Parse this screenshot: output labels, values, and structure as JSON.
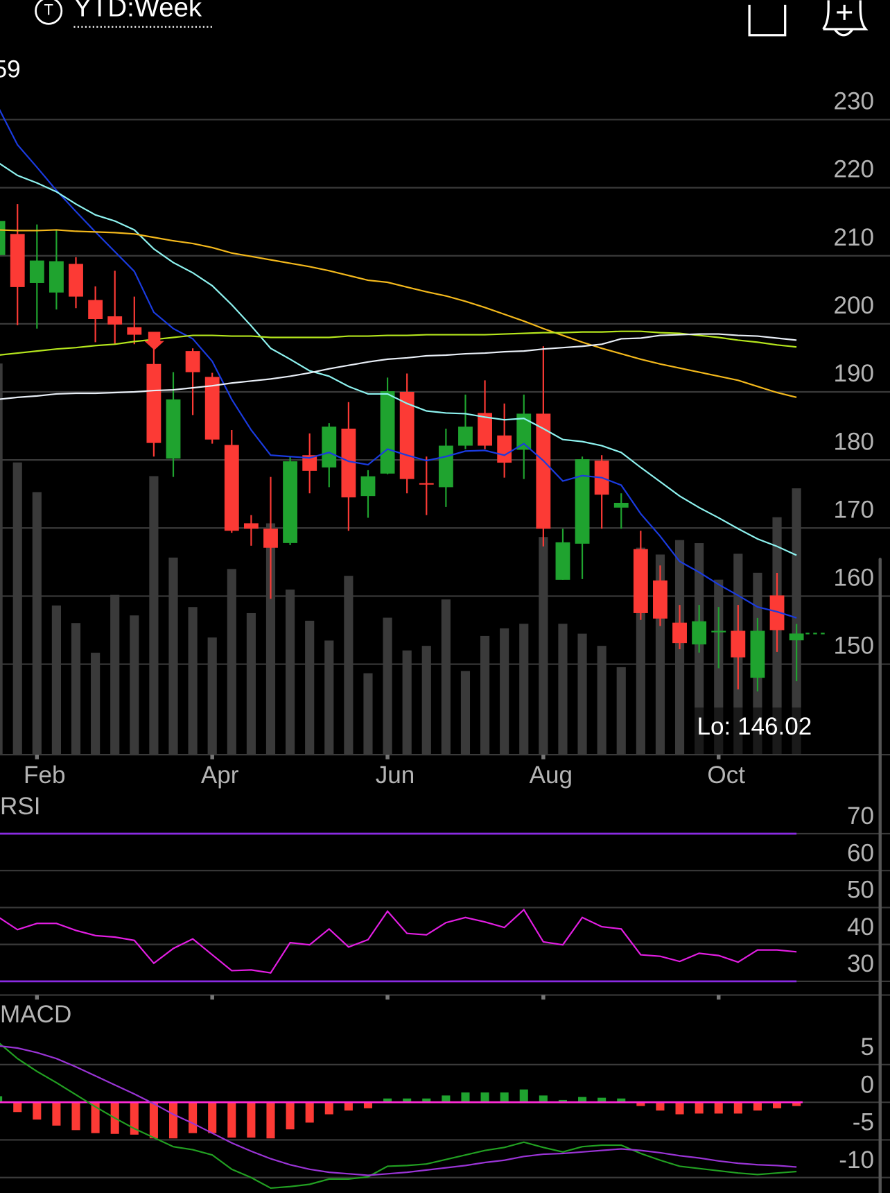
{
  "header": {
    "icon": "T",
    "title": "YTD:Week",
    "price_fragment": "59"
  },
  "chart_data": [
    {
      "type": "candlestick",
      "categories": [
        null,
        null,
        "Feb",
        null,
        null,
        null,
        null,
        null,
        null,
        null,
        null,
        "Apr",
        null,
        null,
        null,
        null,
        null,
        null,
        null,
        null,
        "Jun",
        null,
        null,
        null,
        null,
        null,
        null,
        null,
        "Aug",
        null,
        null,
        null,
        null,
        null,
        null,
        null,
        null,
        "Oct",
        null,
        null,
        null,
        null
      ],
      "open": [
        210.1,
        213.2,
        206.0,
        204.6,
        208.8,
        203.5,
        201.1,
        199.5,
        194.1,
        180.2,
        196.0,
        192.2,
        182.2,
        170.7,
        169.9,
        167.8,
        180.7,
        178.9,
        184.6,
        174.7,
        178.0,
        190.0,
        176.6,
        176.0,
        182.1,
        186.9,
        183.6,
        181.5,
        186.8,
        162.4,
        167.7,
        179.9,
        173.0,
        166.9,
        162.3,
        156.1,
        152.9,
        154.8,
        154.9,
        148.0,
        160.1,
        153.5
      ],
      "high": [
        215.5,
        217.6,
        214.6,
        213.7,
        209.8,
        205.5,
        207.8,
        204.0,
        196.4,
        192.9,
        196.4,
        192.8,
        184.4,
        171.9,
        177.5,
        180.5,
        183.9,
        185.4,
        188.5,
        178.5,
        192.1,
        192.7,
        180.5,
        184.6,
        189.6,
        191.7,
        188.3,
        189.6,
        196.7,
        169.9,
        180.5,
        180.7,
        175.1,
        169.6,
        164.5,
        158.7,
        158.7,
        158.4,
        158.7,
        156.8,
        163.4,
        155.9
      ],
      "low": [
        209.0,
        199.8,
        199.3,
        202.1,
        202.3,
        197.3,
        197.0,
        197.0,
        180.5,
        177.5,
        186.6,
        182.4,
        169.3,
        167.4,
        159.6,
        167.5,
        175.1,
        176.0,
        169.6,
        171.5,
        177.9,
        175.1,
        171.9,
        173.1,
        181.6,
        181.6,
        177.4,
        177.2,
        167.3,
        162.4,
        162.5,
        169.9,
        169.9,
        156.5,
        155.6,
        152.2,
        151.7,
        149.4,
        146.3,
        146.0,
        151.8,
        147.5
      ],
      "close": [
        215.1,
        205.4,
        209.3,
        209.2,
        204.0,
        200.7,
        199.9,
        198.4,
        182.5,
        188.9,
        192.9,
        183.0,
        169.6,
        169.9,
        167.1,
        179.8,
        178.4,
        184.9,
        174.5,
        177.6,
        190.1,
        177.2,
        176.5,
        182.1,
        184.9,
        182.1,
        179.6,
        186.8,
        169.9,
        167.9,
        180.1,
        174.9,
        173.7,
        157.5,
        156.7,
        153.1,
        156.3,
        154.9,
        151.0,
        154.9,
        155.0,
        154.5
      ],
      "up_color": "#1fa32f",
      "down_color": "#fc3a35",
      "volume": [
        514,
        384,
        345,
        196,
        173,
        134,
        210,
        183,
        366,
        259,
        194,
        154,
        244,
        186,
        304,
        217,
        176,
        150,
        235,
        107,
        180,
        137,
        143,
        204,
        110,
        156,
        166,
        172,
        286,
        172,
        159,
        143,
        115,
        272,
        263,
        282,
        278,
        230,
        264,
        239,
        312,
        350
      ],
      "volume_color": "#3a3a3a",
      "series": [
        {
          "color": "#1a3be0",
          "values": [
            231.9,
            226.3,
            223.0,
            219.6,
            216.5,
            213.5,
            210.6,
            207.7,
            201.7,
            199.3,
            197.8,
            194.5,
            188.9,
            184.4,
            180.7,
            180.5,
            180.3,
            181.1,
            179.8,
            179.3,
            181.6,
            180.7,
            179.9,
            180.5,
            181.3,
            181.4,
            180.7,
            182.4,
            179.9,
            176.9,
            177.7,
            177.4,
            176.3,
            172.1,
            168.8,
            165.1,
            163.5,
            161.7,
            160.1,
            158.4,
            157.7,
            156.8
          ]
        },
        {
          "color": "#8ef3f0",
          "values": [
            223.7,
            221.8,
            220.7,
            219.4,
            217.6,
            216.0,
            215.1,
            213.8,
            211.0,
            209.0,
            207.5,
            205.6,
            202.8,
            199.7,
            196.4,
            194.8,
            193.1,
            192.3,
            190.8,
            189.7,
            189.7,
            188.3,
            187.2,
            186.9,
            186.8,
            186.3,
            185.9,
            186.1,
            184.6,
            183.0,
            182.7,
            182.1,
            181.1,
            178.9,
            176.8,
            174.7,
            173.0,
            171.5,
            169.9,
            168.4,
            167.3,
            166.0
          ]
        },
        {
          "color": "#f4b91c",
          "values": [
            213.8,
            213.7,
            213.7,
            213.8,
            213.6,
            213.5,
            213.4,
            213.2,
            212.7,
            212.2,
            211.8,
            211.2,
            210.4,
            209.9,
            209.4,
            208.9,
            208.4,
            207.8,
            207.1,
            206.4,
            206.1,
            205.4,
            204.7,
            204.1,
            203.3,
            202.4,
            201.4,
            200.4,
            199.3,
            198.3,
            197.3,
            196.4,
            195.6,
            194.8,
            194.1,
            193.5,
            192.9,
            192.3,
            191.7,
            190.8,
            189.9,
            189.2
          ]
        },
        {
          "color": "#b5e61d",
          "values": [
            195.4,
            195.7,
            196.0,
            196.3,
            196.5,
            196.8,
            197.0,
            197.4,
            197.7,
            198.0,
            198.3,
            198.3,
            198.2,
            198.2,
            198.0,
            198.0,
            198.0,
            198.0,
            198.2,
            198.2,
            198.3,
            198.3,
            198.4,
            198.4,
            198.4,
            198.4,
            198.5,
            198.6,
            198.7,
            198.7,
            198.8,
            198.8,
            198.9,
            198.9,
            198.7,
            198.6,
            198.3,
            198.0,
            197.6,
            197.3,
            196.9,
            196.6
          ]
        },
        {
          "color": "#e8eef6",
          "values": [
            188.9,
            189.2,
            189.4,
            189.7,
            189.8,
            189.8,
            189.9,
            190.0,
            190.2,
            190.3,
            190.6,
            190.9,
            191.3,
            191.6,
            191.9,
            192.3,
            192.8,
            193.4,
            193.9,
            194.4,
            194.8,
            195.0,
            195.3,
            195.4,
            195.6,
            195.7,
            195.9,
            196.0,
            196.3,
            196.5,
            196.7,
            197.0,
            197.8,
            197.9,
            198.3,
            198.4,
            198.5,
            198.5,
            198.3,
            198.2,
            197.9,
            197.6
          ]
        }
      ],
      "ylim": [
        136.7,
        238.6
      ],
      "yticks": [
        150,
        160,
        170,
        180,
        190,
        200,
        210,
        220,
        230
      ],
      "grid": true,
      "annotation": "Lo: 146.02"
    },
    {
      "type": "line",
      "title": "RSI",
      "values": [
        47.5,
        44.0,
        45.7,
        45.7,
        43.8,
        42.4,
        42.0,
        41.1,
        34.9,
        38.9,
        41.5,
        37.2,
        32.9,
        33.1,
        32.3,
        40.5,
        39.9,
        44.2,
        39.3,
        41.3,
        49.0,
        43.0,
        42.6,
        45.9,
        47.3,
        46.1,
        44.6,
        49.4,
        40.7,
        39.9,
        47.3,
        44.8,
        44.2,
        37.2,
        36.8,
        35.4,
        37.6,
        37.0,
        35.2,
        38.5,
        38.5,
        38.0
      ],
      "color": "#e31ee3",
      "levels": [
        70,
        30
      ],
      "level_color": "#8a2be2",
      "ylim": [
        26.3,
        77.8
      ],
      "yticks": [
        30,
        40,
        50,
        60,
        70
      ],
      "grid": true
    },
    {
      "type": "macd",
      "title": "MACD",
      "series": [
        {
          "color": "#22a022",
          "values": [
            8.0,
            5.8,
            4.1,
            2.6,
            1.0,
            -0.6,
            -2.1,
            -3.5,
            -4.7,
            -5.9,
            -6.3,
            -7.0,
            -8.9,
            -10.0,
            -11.4,
            -11.2,
            -10.9,
            -10.2,
            -10.2,
            -9.9,
            -8.5,
            -8.4,
            -8.2,
            -7.6,
            -7.0,
            -6.4,
            -6.0,
            -5.3,
            -6.0,
            -6.6,
            -5.9,
            -5.7,
            -5.7,
            -6.8,
            -7.7,
            -8.5,
            -8.8,
            -9.1,
            -9.4,
            -9.6,
            -9.4,
            -9.2
          ]
        },
        {
          "color": "#9a34d6",
          "values": [
            7.5,
            7.2,
            6.6,
            5.8,
            4.7,
            3.5,
            2.3,
            1.1,
            -0.2,
            -1.6,
            -2.8,
            -4.1,
            -5.4,
            -6.5,
            -7.5,
            -8.3,
            -8.9,
            -9.3,
            -9.5,
            -9.7,
            -9.5,
            -9.3,
            -9.0,
            -8.7,
            -8.4,
            -8.0,
            -7.7,
            -7.2,
            -6.9,
            -6.8,
            -6.6,
            -6.4,
            -6.2,
            -6.4,
            -6.7,
            -7.1,
            -7.4,
            -7.8,
            -8.1,
            -8.3,
            -8.4,
            -8.6
          ]
        }
      ],
      "histogram": [
        0.8,
        -1.3,
        -2.3,
        -3.1,
        -3.7,
        -4.1,
        -4.2,
        -4.3,
        -4.8,
        -4.8,
        -4.1,
        -4.1,
        -4.7,
        -4.7,
        -4.8,
        -3.6,
        -2.7,
        -1.6,
        -1.1,
        -0.8,
        0.5,
        0.5,
        0.5,
        0.9,
        1.3,
        1.3,
        1.3,
        1.7,
        0.9,
        0.3,
        0.7,
        0.6,
        0.5,
        -0.5,
        -1.1,
        -1.6,
        -1.5,
        -1.5,
        -1.5,
        -1.1,
        -0.8,
        -0.5
      ],
      "up_color": "#1fa32f",
      "down_color": "#fc3a35",
      "zero_color": "#ff2bd6",
      "ylim": [
        -12,
        13
      ],
      "yticks": [
        -10,
        -5,
        0,
        5
      ],
      "grid": true
    }
  ]
}
